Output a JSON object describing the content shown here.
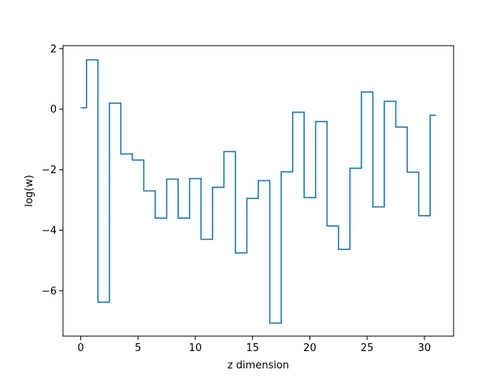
{
  "chart_data": {
    "type": "line",
    "drawstyle": "steps-mid",
    "title": "",
    "xlabel": "z dimension",
    "ylabel": "log(w)",
    "xlim": [
      -1.55,
      32.55
    ],
    "ylim": [
      -7.5,
      2.1
    ],
    "xticks": [
      0,
      5,
      10,
      15,
      20,
      25,
      30
    ],
    "xtick_labels": [
      "0",
      "5",
      "10",
      "15",
      "20",
      "25",
      "30"
    ],
    "yticks": [
      2,
      0,
      -2,
      -4,
      -6
    ],
    "ytick_labels": [
      "2",
      "0",
      "−2",
      "−4",
      "−6"
    ],
    "grid": false,
    "legend": "none",
    "series": [
      {
        "color": "#1f77b4",
        "x": [
          0,
          1,
          2,
          3,
          4,
          5,
          6,
          7,
          8,
          9,
          10,
          11,
          12,
          13,
          14,
          15,
          16,
          17,
          18,
          19,
          20,
          21,
          22,
          23,
          24,
          25,
          26,
          27,
          28,
          29,
          30,
          31
        ],
        "y": [
          0.05,
          1.63,
          -6.38,
          0.2,
          -1.48,
          -1.68,
          -2.7,
          -3.6,
          -2.31,
          -3.6,
          -2.29,
          -4.3,
          -2.58,
          -1.4,
          -4.75,
          -2.95,
          -2.36,
          -7.07,
          -2.07,
          -0.1,
          -2.92,
          -0.41,
          -3.86,
          -4.63,
          -1.95,
          0.57,
          -3.23,
          0.26,
          -0.59,
          -2.08,
          -3.52,
          -0.2
        ]
      }
    ]
  }
}
